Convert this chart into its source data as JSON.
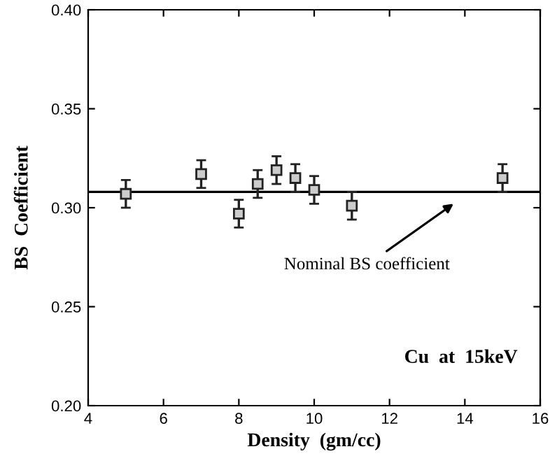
{
  "chart_data": {
    "type": "scatter",
    "xlabel": "Density  (gm/cc)",
    "ylabel": "BS  Coefficient",
    "x": [
      5,
      7,
      8,
      8.5,
      9,
      9.5,
      10,
      11,
      15
    ],
    "values": [
      0.307,
      0.317,
      0.297,
      0.312,
      0.319,
      0.315,
      0.309,
      0.301,
      0.315
    ],
    "errors": [
      0.007,
      0.007,
      0.007,
      0.007,
      0.007,
      0.007,
      0.007,
      0.007,
      0.007
    ],
    "color": "#222222",
    "marker": "square",
    "xlim": [
      4,
      16
    ],
    "xticks": [
      4,
      6,
      8,
      10,
      12,
      14,
      16
    ],
    "ylim": [
      0.2,
      0.4
    ],
    "yticks": [
      {
        "value": 0.2,
        "label": "0.20"
      },
      {
        "value": 0.25,
        "label": "0.25"
      },
      {
        "value": 0.3,
        "label": "0.30"
      },
      {
        "value": 0.35,
        "label": "0.35"
      },
      {
        "value": 0.4,
        "label": "0.40"
      }
    ],
    "ref_lines": [
      {
        "axis": "y",
        "value": 0.308,
        "label": "Nominal BS coefficient",
        "color": "#000000"
      }
    ],
    "annotations": [
      "Cu  at  15keV"
    ],
    "grid": false,
    "legend": false
  }
}
